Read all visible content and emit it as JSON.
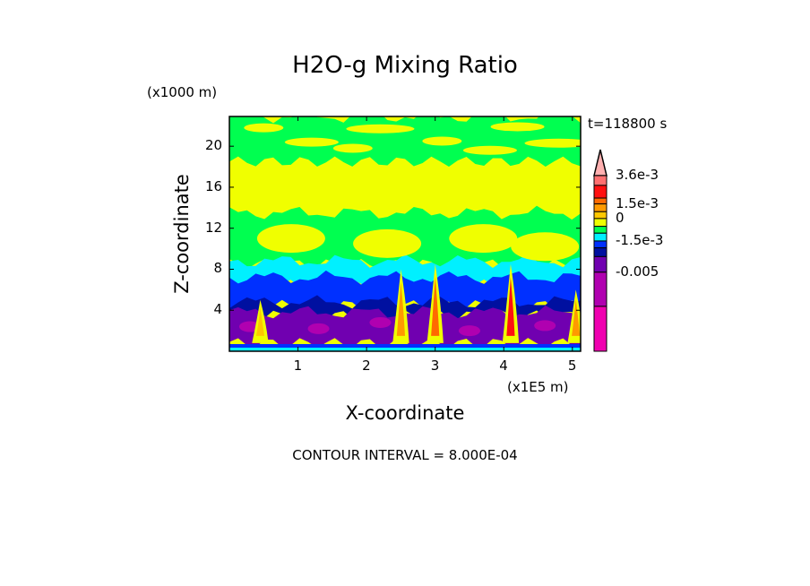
{
  "chart_data": {
    "type": "heatmap",
    "title": "H2O-g Mixing Ratio",
    "xlabel": "X-coordinate",
    "ylabel": "Z-coordinate",
    "x_unit": "(x1E5 m)",
    "y_unit": "(x1000 m)",
    "xlim": [
      0,
      5.12
    ],
    "ylim": [
      0,
      22.9
    ],
    "xticks": [
      "1",
      "2",
      "3",
      "4",
      "5"
    ],
    "xtick_values": [
      1,
      2,
      3,
      4,
      5
    ],
    "yticks": [
      "4",
      "8",
      "12",
      "16",
      "20"
    ],
    "ytick_values": [
      4,
      8,
      12,
      16,
      20
    ],
    "time_label": "t=118800 s",
    "contour_interval": "CONTOUR INTERVAL = 8.000E-04",
    "colorbar": {
      "colors": [
        "#ffb0b0",
        "#ff7070",
        "#ff1010",
        "#ff6a00",
        "#ff9a00",
        "#ffc800",
        "#f0ff00",
        "#00ff50",
        "#00f0ff",
        "#0030ff",
        "#0010a0",
        "#7000b0",
        "#b000b0",
        "#f000b0"
      ],
      "weights": [
        0,
        10,
        13,
        6,
        8,
        7,
        8,
        7,
        8,
        7,
        9,
        16,
        35,
        46
      ],
      "labels": [
        {
          "text": "3.6e-3",
          "level": 1
        },
        {
          "text": "1.5e-3",
          "level": 4
        },
        {
          "text": "0",
          "level": 6
        },
        {
          "text": "-1.5e-3",
          "level": 9
        },
        {
          "text": "-0.005",
          "level": 12
        }
      ]
    },
    "regions": [
      {
        "name": "upper-green-band",
        "color": "#00ff50",
        "x": [
          0,
          5.12
        ],
        "z": [
          18.5,
          22.9
        ]
      },
      {
        "name": "mid-green",
        "color": "#00ff50",
        "x": [
          0,
          5.12
        ],
        "z": [
          8.5,
          13.5
        ]
      },
      {
        "name": "cyan-layer",
        "color": "#00f0ff",
        "x": [
          0,
          5.12
        ],
        "z": [
          6.5,
          8.8
        ]
      },
      {
        "name": "blue-layer",
        "color": "#0030ff",
        "x": [
          0,
          5.12
        ],
        "z": [
          4.5,
          7.2
        ]
      },
      {
        "name": "navy-layer",
        "color": "#0010a0",
        "x": [
          0,
          5.12
        ],
        "z": [
          3.5,
          4.8
        ]
      },
      {
        "name": "purple-layer",
        "color": "#7000b0",
        "x": [
          0,
          5.12
        ],
        "z": [
          0.8,
          3.8
        ]
      }
    ],
    "plumes": [
      {
        "x": 2.5,
        "zmax": 8,
        "color": "#ff9a00"
      },
      {
        "x": 3.0,
        "zmax": 8.5,
        "color": "#ff6a00"
      },
      {
        "x": 4.1,
        "zmax": 8.5,
        "color": "#ff1010"
      },
      {
        "x": 0.45,
        "zmax": 5,
        "color": "#ffc800"
      },
      {
        "x": 5.05,
        "zmax": 6,
        "color": "#ff9a00"
      }
    ]
  }
}
